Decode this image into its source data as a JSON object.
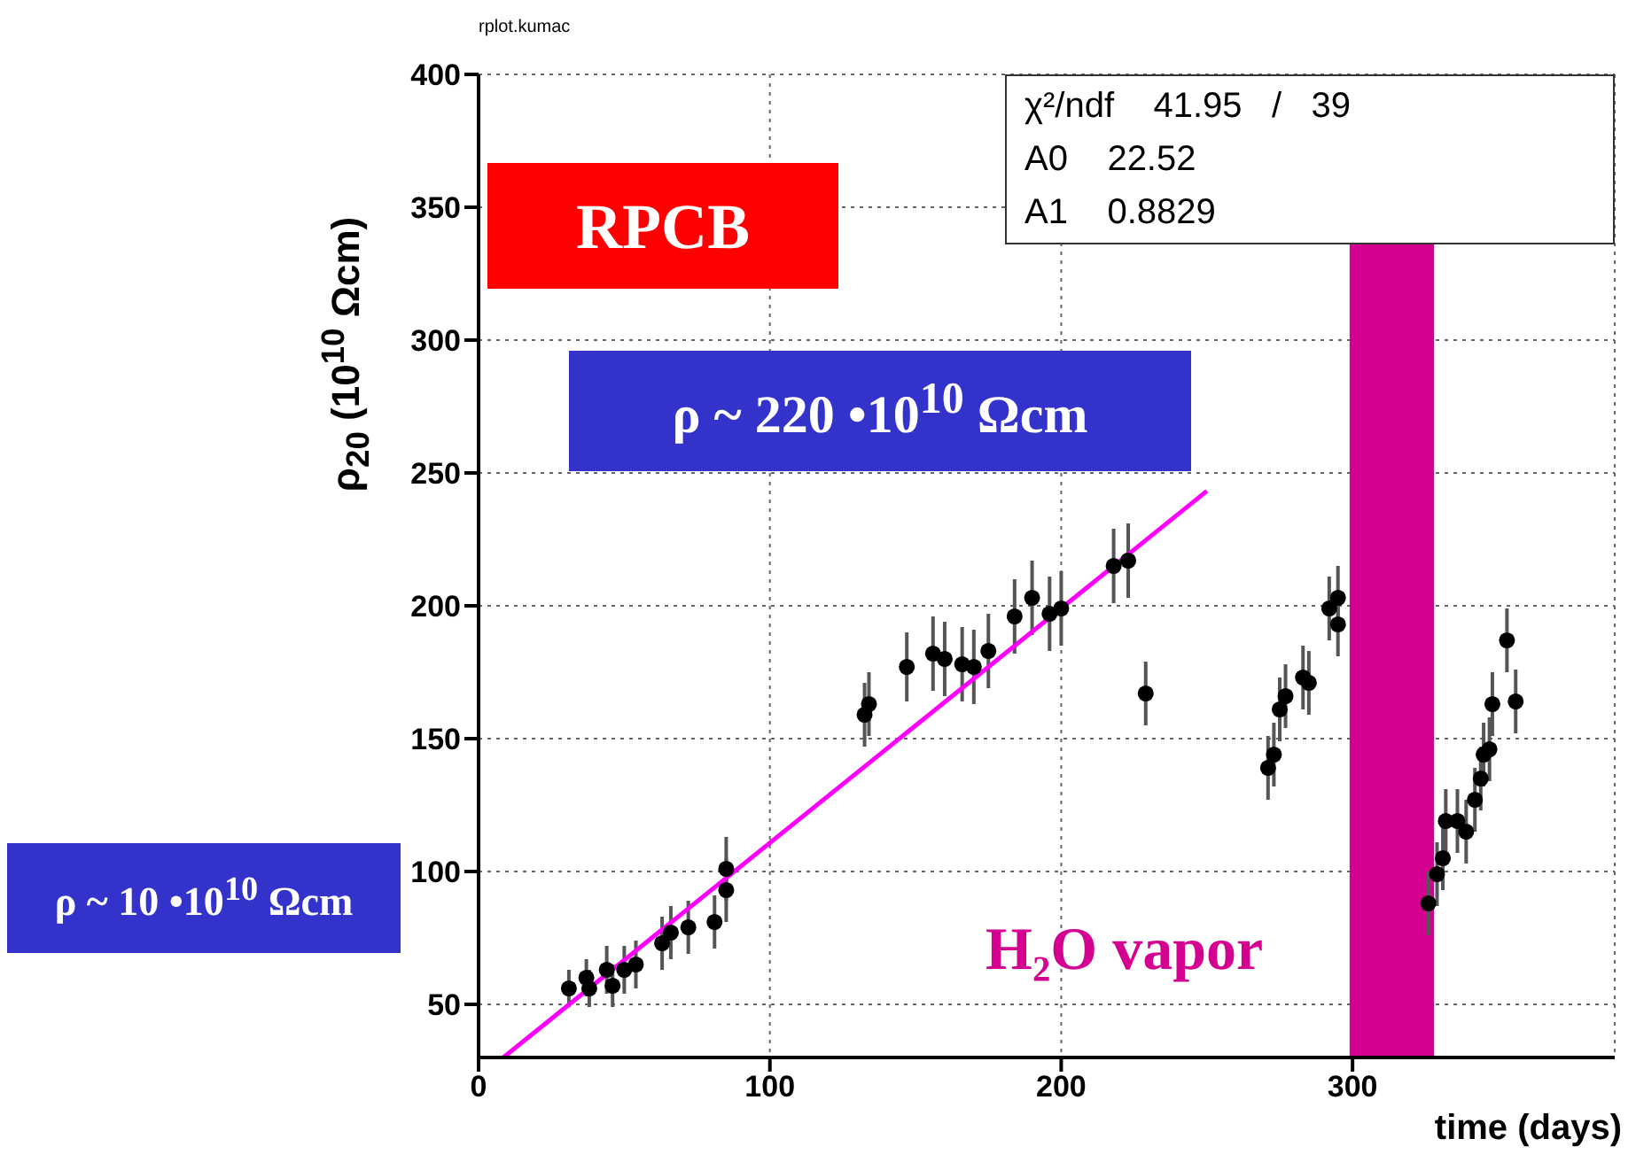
{
  "chart_data": {
    "type": "scatter",
    "xlabel": "time (days)",
    "ylabel": "ρ$_{20}$ (10$^{10}$ Ωcm)",
    "xlim": [
      0,
      390
    ],
    "xticks": [
      0,
      100,
      200,
      300
    ],
    "ylim": [
      30,
      400
    ],
    "yticks": [
      50,
      100,
      150,
      200,
      250,
      300,
      350,
      400
    ],
    "grid": true,
    "series": [
      {
        "color": "#000000",
        "marker": "circle",
        "x": [
          31,
          37,
          38,
          44,
          46,
          50,
          54,
          63,
          66,
          72,
          81,
          85,
          85,
          132.5,
          134,
          147,
          156,
          160,
          166,
          170,
          175,
          184,
          190,
          196,
          200,
          218,
          223,
          229,
          271,
          273,
          275,
          277,
          283,
          285,
          292,
          295,
          295,
          326,
          329,
          331,
          332,
          336,
          339,
          342,
          344,
          345,
          347,
          348,
          353,
          356
        ],
        "values": [
          56,
          60,
          56,
          63,
          57,
          63,
          65,
          73,
          77,
          79,
          81,
          93,
          101,
          159,
          163,
          177,
          182,
          180,
          178,
          177,
          183,
          196,
          203,
          197,
          199,
          215,
          217,
          167,
          139,
          144,
          161,
          166,
          173,
          171,
          199,
          203,
          193,
          88,
          99,
          105,
          119,
          119,
          115,
          127,
          135,
          144,
          146,
          163,
          187,
          164
        ],
        "errors": [
          7,
          7,
          7,
          9,
          8,
          9,
          9,
          10,
          10,
          10,
          10,
          12,
          12,
          12,
          12,
          13,
          14,
          14,
          14,
          14,
          14,
          14,
          14,
          14,
          14,
          14,
          14,
          12,
          12,
          12,
          12,
          12,
          12,
          12,
          12,
          12,
          12,
          12,
          12,
          12,
          12,
          12,
          12,
          12,
          12,
          12,
          12,
          12,
          12,
          12
        ]
      },
      {
        "type": "line",
        "color": "#ff00ff",
        "marker": "none",
        "x": [
          8.5,
          250
        ],
        "values": [
          30,
          243.2
        ]
      }
    ],
    "bands": [
      {
        "axis": "x",
        "from": 299,
        "to": 328,
        "color": "#d4008f"
      }
    ],
    "annotations": [
      "rplot.kumac",
      "χ²/ndf    41.95   /   39",
      "A0    22.52",
      "A1    0.8829",
      "RPCB",
      "ρ ~ 220 •10$^{10}$ Ωcm",
      "ρ ~ 10 •10$^{10}$ Ωcm",
      "H₂O vapor"
    ]
  }
}
